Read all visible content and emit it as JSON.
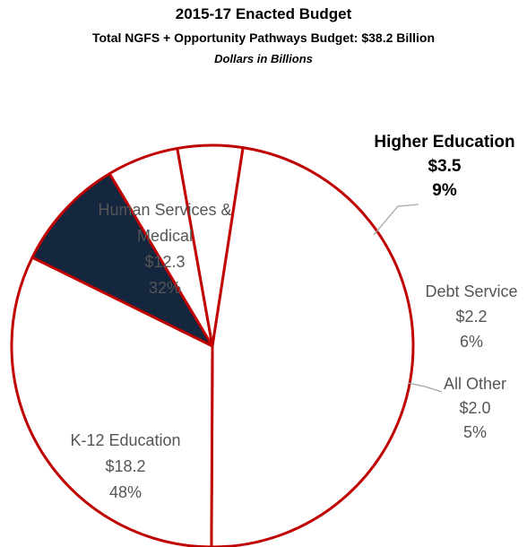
{
  "header": {
    "title": "2015-17 Enacted Budget",
    "subtitle": "Total NGFS + Opportunity Pathways Budget:  $38.2 Billion",
    "note": "Dollars in Billions"
  },
  "chart_data": {
    "type": "pie",
    "title": "2015-17 Enacted Budget",
    "subtitle": "Total NGFS + Opportunity Pathways Budget:  $38.2 Billion",
    "units": "Dollars in Billions",
    "slices": [
      {
        "label": "Higher Education",
        "value": 3.5,
        "value_label": "$3.5",
        "percent_label": "9%",
        "highlight": true
      },
      {
        "label": "Debt Service",
        "value": 2.2,
        "value_label": "$2.2",
        "percent_label": "6%",
        "highlight": false
      },
      {
        "label": "All Other",
        "value": 2.0,
        "value_label": "$2.0",
        "percent_label": "5%",
        "highlight": false
      },
      {
        "label": "K-12 Education",
        "value": 18.2,
        "value_label": "$18.2",
        "percent_label": "48%",
        "highlight": false
      },
      {
        "label": "Human Services & Medical",
        "value": 12.3,
        "value_label": "$12.3",
        "percent_label": "32%",
        "highlight": false
      }
    ],
    "colors": {
      "highlight_fill": "#15263f",
      "fill": "#ffffff",
      "edge": "#c00000",
      "leader": "#a6a6a6"
    }
  }
}
